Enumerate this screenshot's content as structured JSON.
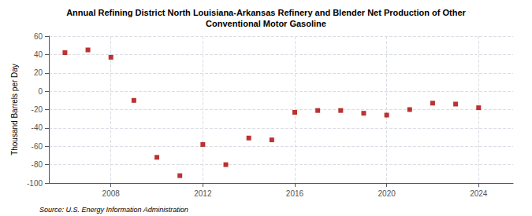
{
  "chart_data": {
    "type": "scatter",
    "title": "Annual Refining District North Louisiana-Arkansas Refinery and Blender Net Production of Other\nConventional Motor Gasoline",
    "ylabel": "Thousand Barrels per Day",
    "annotations": [
      "Source: U.S. Energy Information Administration"
    ],
    "x": [
      2006,
      2007,
      2008,
      2009,
      2010,
      2011,
      2012,
      2013,
      2014,
      2015,
      2016,
      2017,
      2018,
      2019,
      2020,
      2021,
      2022,
      2023,
      2024
    ],
    "values": [
      42,
      45,
      37,
      -10,
      -72,
      -92,
      -58,
      -80,
      -51,
      -53,
      -23,
      -21,
      -21,
      -24,
      -26,
      -20,
      -13,
      -14,
      -18
    ],
    "color": "#aa0000",
    "marker": "square",
    "xlim": [
      2005.3,
      2025.5
    ],
    "ylim": [
      -100,
      60
    ],
    "xticks": [
      2008,
      2012,
      2016,
      2020,
      2024
    ],
    "yticks": [
      -100,
      -80,
      -60,
      -40,
      -20,
      0,
      20,
      40,
      60
    ],
    "grid": true
  }
}
